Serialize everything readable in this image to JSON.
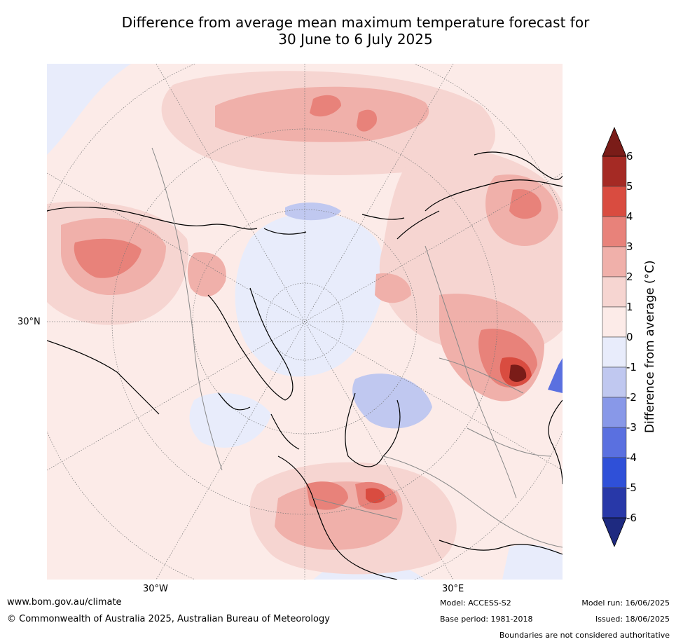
{
  "title": {
    "line1": "Difference from average mean maximum temperature forecast for",
    "line2": "30 June to 6 July 2025"
  },
  "axis_labels": {
    "lat_30n": "30°N",
    "lon_30w": "30°W",
    "lon_30e": "30°E"
  },
  "colorbar": {
    "label": "Difference from average ($^\\circ$C)",
    "label_display": "Difference from average (°C)",
    "ticks": [
      "6",
      "5",
      "4",
      "3",
      "2",
      "1",
      "0",
      "-1",
      "-2",
      "-3",
      "-4",
      "-5",
      "-6"
    ],
    "colors_top_to_bottom": [
      "#a52a24",
      "#d94c40",
      "#e8827a",
      "#f0b0aa",
      "#f6d5d1",
      "#fcebe8",
      "#e8ecfb",
      "#c0c8f0",
      "#8898e8",
      "#5a70e0",
      "#2f50d8",
      "#2838a8"
    ],
    "over_color": "#7a1c18",
    "under_color": "#1e2a80"
  },
  "footer": {
    "url": "www.bom.gov.au/climate",
    "copyright": "© Commonwealth of Australia 2025, Australian Bureau of Meteorology",
    "model": "Model: ACCESS-S2",
    "base_period": "Base period: 1981-2018",
    "model_run": "Model run: 16/06/2025",
    "issued": "Issued: 18/06/2025",
    "disclaimer": "Boundaries are not considered authoritative"
  }
}
